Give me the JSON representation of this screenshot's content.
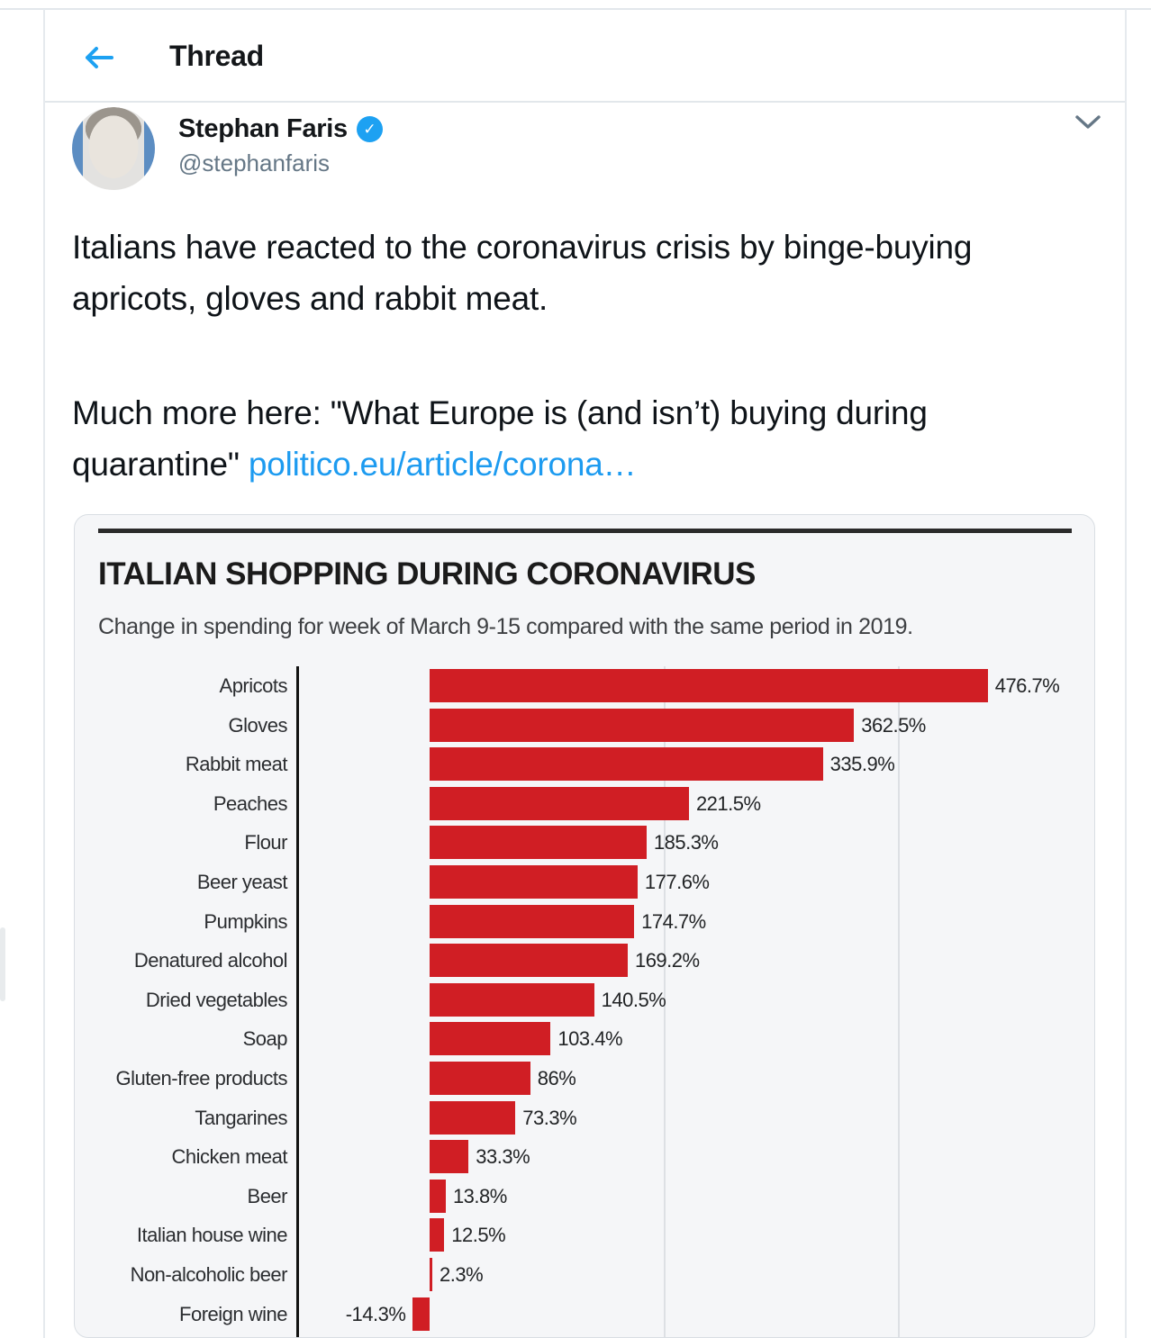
{
  "colors": {
    "accent": "#1da1f2",
    "link": "#1d9bf0",
    "bar_red": "#d01e24",
    "card_bg": "#f5f6f8",
    "muted_gray": "#657786"
  },
  "icons": {
    "back": "left-arrow-icon",
    "verified": "verified-badge-icon",
    "expand": "chevron-down-icon",
    "check_glyph": "✓"
  },
  "header": {
    "title": "Thread"
  },
  "tweet": {
    "author": {
      "name": "Stephan Faris",
      "handle": "@stephanfaris",
      "verified": true
    },
    "paragraph1": "Italians have reacted to the coronavirus crisis by binge-buying apricots, gloves and rabbit meat.",
    "paragraph2_text": "Much more here: \"What Europe is (and isn’t) buying during quarantine\" ",
    "paragraph2_link": "politico.eu/article/corona…"
  },
  "chart_data": {
    "type": "bar",
    "orientation": "horizontal",
    "title": "ITALIAN SHOPPING DURING CORONAVIRUS",
    "subtitle": "Change in spending for week of March 9-15 compared with the same period in 2019.",
    "categories": [
      "Apricots",
      "Gloves",
      "Rabbit meat",
      "Peaches",
      "Flour",
      "Beer yeast",
      "Pumpkins",
      "Denatured alcohol",
      "Dried vegetables",
      "Soap",
      "Gluten-free products",
      "Tangarines",
      "Chicken meat",
      "Beer",
      "Italian house wine",
      "Non-alcoholic beer",
      "Foreign wine"
    ],
    "values": [
      476.7,
      362.5,
      335.9,
      221.5,
      185.3,
      177.6,
      174.7,
      169.2,
      140.5,
      103.4,
      86,
      73.3,
      33.3,
      13.8,
      12.5,
      2.3,
      -14.3
    ],
    "value_labels": [
      "476.7%",
      "362.5%",
      "335.9%",
      "221.5%",
      "185.3%",
      "177.6%",
      "174.7%",
      "169.2%",
      "140.5%",
      "103.4%",
      "86%",
      "73.3%",
      "33.3%",
      "13.8%",
      "12.5%",
      "2.3%",
      "-14.3%"
    ],
    "unit": "%",
    "bar_color": "#d01e24",
    "xlim": [
      -50,
      560
    ],
    "gridlines_at": [
      200,
      400
    ],
    "grid": "vertical-light",
    "value_label_position": "outside-end",
    "legend": "none",
    "note": "bottom of chart cropped by viewport"
  }
}
